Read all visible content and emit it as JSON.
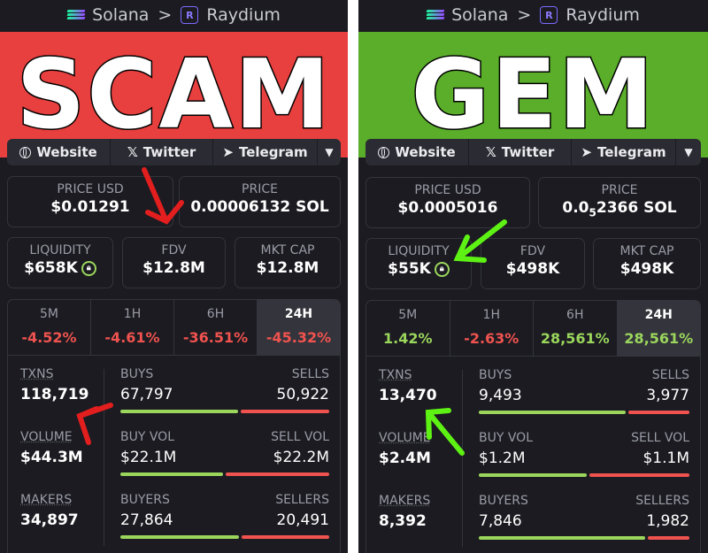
{
  "colors": {
    "scam_banner": "#e8403f",
    "gem_banner": "#5aae2a",
    "positive": "#9bd65c",
    "negative": "#f0534f",
    "arrow_red": "#e21e1e",
    "arrow_green": "#5ef214"
  },
  "breadcrumb": {
    "chain": "Solana",
    "separator": ">",
    "dex": "Raydium"
  },
  "links": {
    "website": "Website",
    "twitter": "Twitter",
    "telegram": "Telegram",
    "more_icon": "chevron-down-icon"
  },
  "labels": {
    "price_usd": "PRICE USD",
    "price": "PRICE",
    "liquidity": "LIQUIDITY",
    "fdv": "FDV",
    "mkt_cap": "MKT CAP",
    "txns": "TXNS",
    "volume": "VOLUME",
    "makers": "MAKERS",
    "buys": "BUYS",
    "sells": "SELLS",
    "buy_vol": "BUY VOL",
    "sell_vol": "SELL VOL",
    "buyers": "BUYERS",
    "sellers": "SELLERS",
    "tf_5m": "5M",
    "tf_1h": "1H",
    "tf_6h": "6H",
    "tf_24h": "24H"
  },
  "panels": [
    {
      "banner": "SCAM",
      "price_usd": "$0.01291",
      "price_sol": "0.00006132 SOL",
      "liquidity": "$658K",
      "fdv": "$12.8M",
      "mkt_cap": "$12.8M",
      "changes": {
        "m5": "-4.52%",
        "h1": "-4.61%",
        "h6": "-36.51%",
        "h24": "-45.32%"
      },
      "txns": "118,719",
      "volume": "$44.3M",
      "makers": "34,897",
      "buys": "67,797",
      "sells": "50,922",
      "buys_share": 0.571,
      "buy_vol": "$22.1M",
      "sell_vol": "$22.2M",
      "buy_vol_share": 0.499,
      "buyers": "27,864",
      "sellers": "20,491",
      "buyers_share": 0.576
    },
    {
      "banner": "GEM",
      "price_usd": "$0.0005016",
      "price_sol_prefix": "0.0",
      "price_sol_sub": "5",
      "price_sol_suffix": "2366 SOL",
      "liquidity": "$55K",
      "fdv": "$498K",
      "mkt_cap": "$498K",
      "changes": {
        "m5": "1.42%",
        "h1": "-2.63%",
        "h6": "28,561%",
        "h24": "28,561%"
      },
      "txns": "13,470",
      "volume": "$2.4M",
      "makers": "8,392",
      "buys": "9,493",
      "sells": "3,977",
      "buys_share": 0.705,
      "buy_vol": "$1.2M",
      "sell_vol": "$1.1M",
      "buy_vol_share": 0.52,
      "buyers": "7,846",
      "sellers": "1,982",
      "buyers_share": 0.798
    }
  ]
}
